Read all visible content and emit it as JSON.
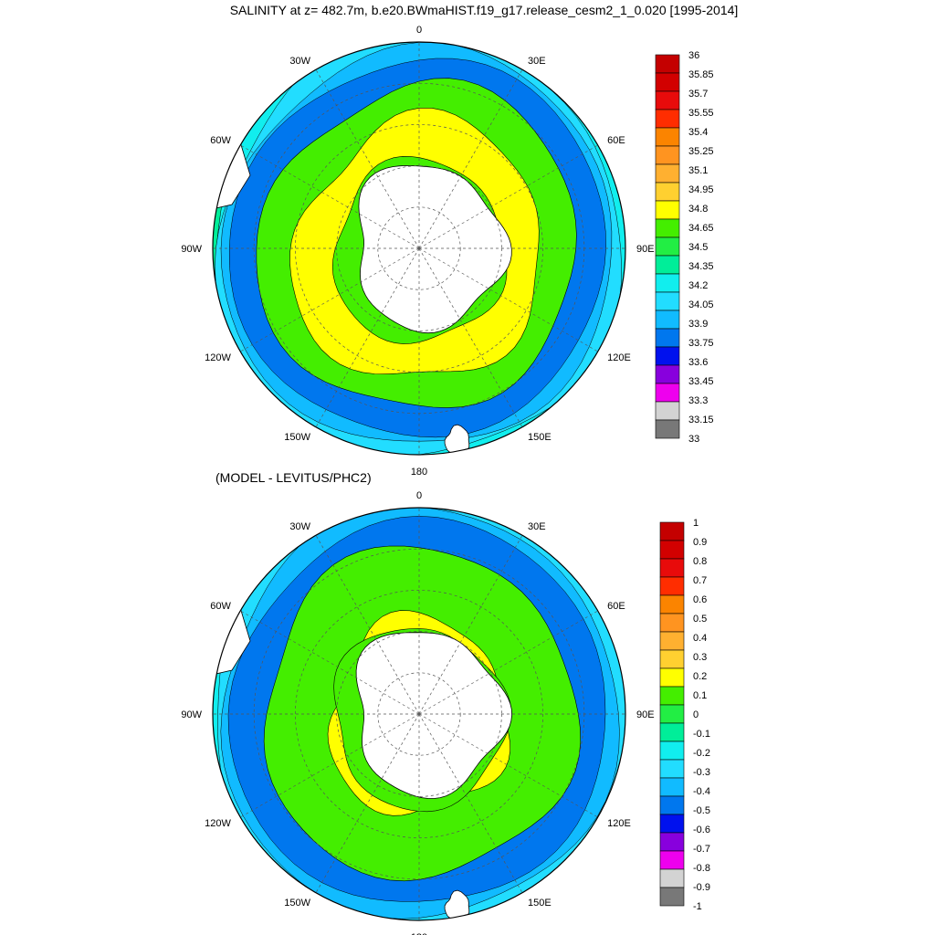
{
  "title": "SALINITY at z= 482.7m, b.e20.BWmaHIST.f19_g17.release_cesm2_1_0.020 [1995-2014]",
  "lon_labels": [
    "0",
    "30E",
    "60E",
    "90E",
    "120E",
    "150E",
    "180",
    "150W",
    "120W",
    "90W",
    "60W",
    "30W"
  ],
  "panels": [
    {
      "name": "salinity-map",
      "subtitle": "",
      "colorbar": {
        "labels": [
          "36",
          "35.85",
          "35.7",
          "35.55",
          "35.4",
          "35.25",
          "35.1",
          "34.95",
          "34.8",
          "34.65",
          "34.5",
          "34.35",
          "34.2",
          "34.05",
          "33.9",
          "33.75",
          "33.6",
          "33.45",
          "33.3",
          "33.15",
          "33"
        ],
        "colors": [
          "#c40000",
          "#d20000",
          "#e80b0b",
          "#ff2d00",
          "#fb8400",
          "#ff9420",
          "#ffb030",
          "#ffd030",
          "#ffff00",
          "#44ee00",
          "#22ee44",
          "#00ee99",
          "#11eeee",
          "#22ddff",
          "#11bbff",
          "#0077ee",
          "#0011ee",
          "#8800dd",
          "#ee00ee",
          "#d3d3d3",
          "#787878"
        ]
      },
      "fields": {
        "inner_yellow_ring": "#ffff00",
        "green_band": "#44ee00",
        "outer_gradient": [
          "#00ee99",
          "#11eeee",
          "#22ddff",
          "#11bbff",
          "#0077ee"
        ]
      }
    },
    {
      "name": "difference-map",
      "subtitle": "(MODEL - LEVITUS/PHC2)",
      "colorbar": {
        "labels": [
          "1",
          "0.9",
          "0.8",
          "0.7",
          "0.6",
          "0.5",
          "0.4",
          "0.3",
          "0.2",
          "0.1",
          "0",
          "-0.1",
          "-0.2",
          "-0.3",
          "-0.4",
          "-0.5",
          "-0.6",
          "-0.7",
          "-0.8",
          "-0.9",
          "-1"
        ],
        "colors": [
          "#c40000",
          "#d20000",
          "#e80b0b",
          "#ff2d00",
          "#fb8400",
          "#ff9420",
          "#ffb030",
          "#ffd030",
          "#ffff00",
          "#44ee00",
          "#22ee44",
          "#00ee99",
          "#11eeee",
          "#22ddff",
          "#11bbff",
          "#0077ee",
          "#0011ee",
          "#8800dd",
          "#ee00ee",
          "#d3d3d3",
          "#787878"
        ]
      },
      "fields": {
        "inner_yellow_ring": "#ffff00",
        "green_band": "#44ee00",
        "outer_gradient": [
          "#11eeee",
          "#22ddff",
          "#11bbff",
          "#0077ee"
        ]
      }
    }
  ],
  "colors": {
    "land": "#ffffff",
    "coast": "#000000",
    "grid": "#555555"
  }
}
